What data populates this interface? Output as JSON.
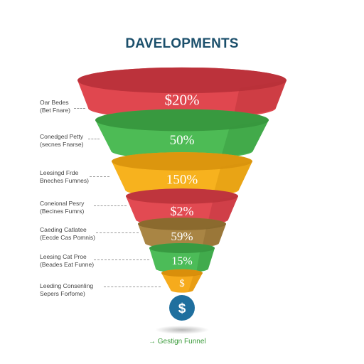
{
  "title": "DAVELOPMENTS",
  "title_color": "#1b4f6b",
  "stages": [
    {
      "value": "$20%",
      "label_line1": "Oar Bedes",
      "label_line2": "(Bet Fnare)",
      "color": "#e0474f",
      "dark": "#b83038"
    },
    {
      "value": "50%",
      "label_line1": "Conedged Petty",
      "label_line2": "(secnes Fnarse)",
      "color": "#4dbb55",
      "dark": "#36963d"
    },
    {
      "value": "150%",
      "label_line1": "Leesingd Frde",
      "label_line2": "Bneches Fumnes)",
      "color": "#f7b21e",
      "dark": "#d8920c"
    },
    {
      "value": "$2%",
      "label_line1": "Coneional Pesry",
      "label_line2": "(Becines Fumrs)",
      "color": "#e24a52",
      "dark": "#bb333b"
    },
    {
      "value": "59%",
      "label_line1": "Caeding Catlatee",
      "label_line2": "(Eecde Cas Pomnis)",
      "color": "#a98544",
      "dark": "#87672c"
    },
    {
      "value": "15%",
      "label_line1": "Leesing Cat Proe",
      "label_line2": "(Beades Eat Funne)",
      "color": "#4cbc58",
      "dark": "#36963f"
    },
    {
      "value": "$",
      "label_line1": "Leeding Consenling",
      "label_line2": "Sepers Forfome)",
      "color": "#f6ab1c",
      "dark": "#d68c0a"
    }
  ],
  "coin": {
    "symbol": "$",
    "color": "#1f6f9e"
  },
  "footer": {
    "arrow": "→",
    "text": "Gestign Funnel",
    "color": "#3a9a3a"
  }
}
